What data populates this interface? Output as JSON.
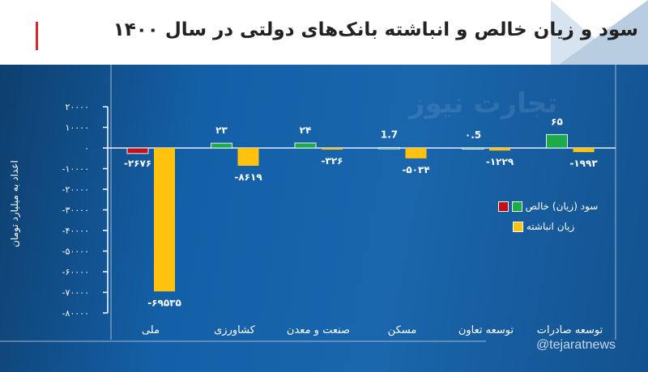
{
  "header": {
    "title": "سود و زیان خالص و انباشته بانک‌های دولتی در سال ۱۴۰۰"
  },
  "watermark": "تجارت نیوز",
  "handle": "@tejaratnews",
  "colors": {
    "profit": "#1bab4b",
    "loss_net": "#c0121b",
    "accumulated_loss": "#ffc20e"
  },
  "chart_data": {
    "type": "bar",
    "title": "سود و زیان خالص و انباشته بانک‌های دولتی در سال ۱۴۰۰",
    "ylabel": "اعداد به میلیارد تومان",
    "ylim": [
      -80000,
      20000
    ],
    "yticks": [
      20000,
      10000,
      0,
      -10000,
      -20000,
      -30000,
      -40000,
      -50000,
      -60000,
      -70000,
      -80000
    ],
    "ytick_labels": [
      "۲۰۰۰۰",
      "۱۰۰۰۰",
      "۰",
      "-۱۰۰۰۰",
      "-۲۰۰۰۰",
      "-۳۰۰۰۰",
      "-۴۰۰۰۰",
      "-۵۰۰۰۰",
      "-۶۰۰۰۰",
      "-۷۰۰۰۰",
      "-۸۰۰۰۰"
    ],
    "categories": [
      "ملی",
      "کشاورزی",
      "صنعت و معدن",
      "مسکن",
      "توسعه تعاون",
      "توسعه صادرات"
    ],
    "legend_placement": "right",
    "series": [
      {
        "name": "سود (زیان) خالص",
        "values": [
          -2676,
          23,
          24,
          1.7,
          0.5,
          65
        ],
        "labels": [
          "-۲۶۷۶",
          "۲۳",
          "۲۴",
          "1.7",
          "۰.5",
          "۶۵"
        ]
      },
      {
        "name": "زیان انباشته",
        "values": [
          -69535,
          -8619,
          -326,
          -5034,
          -1229,
          -1993
        ],
        "labels": [
          "-۶۹۵۳۵",
          "-۸۶۱۹",
          "-۳۲۶",
          "-۵۰۳۴",
          "-۱۲۲۹",
          "-۱۹۹۳"
        ]
      }
    ]
  }
}
